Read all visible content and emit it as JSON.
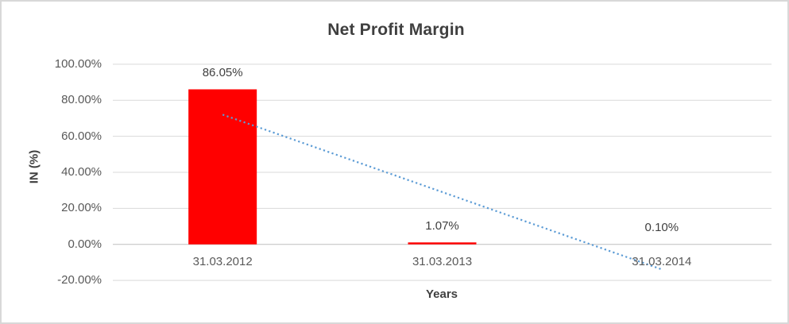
{
  "chart_data": {
    "type": "bar",
    "title": "Net Profit Margin",
    "xlabel": "Years",
    "ylabel": "IN (%)",
    "categories": [
      "31.03.2012",
      "31.03.2013",
      "31.03.2014"
    ],
    "values": [
      86.05,
      1.07,
      0.1
    ],
    "data_labels": [
      "86.05%",
      "1.07%",
      "0.10%"
    ],
    "ylim": [
      -20,
      100
    ],
    "yticks": [
      {
        "value": 100,
        "label": "100.00%"
      },
      {
        "value": 80,
        "label": "80.00%"
      },
      {
        "value": 60,
        "label": "60.00%"
      },
      {
        "value": 40,
        "label": "40.00%"
      },
      {
        "value": 20,
        "label": "20.00%"
      },
      {
        "value": 0,
        "label": "0.00%"
      },
      {
        "value": -20,
        "label": "-20.00%"
      }
    ],
    "grid": true,
    "legend": "none",
    "bar_color": "#FF0000",
    "trendline": {
      "type": "linear",
      "style": "dotted",
      "color": "#5B9BD5",
      "start_value": 72.0,
      "end_value": -13.9
    }
  },
  "colors": {
    "title_text": "#3F3F3F",
    "axis_text": "#595959",
    "data_label_text": "#404040",
    "gridline": "#D9D9D9",
    "axis_line": "#BFBFBF",
    "background": "#FFFFFF",
    "frame_border": "#D8D8D8"
  }
}
